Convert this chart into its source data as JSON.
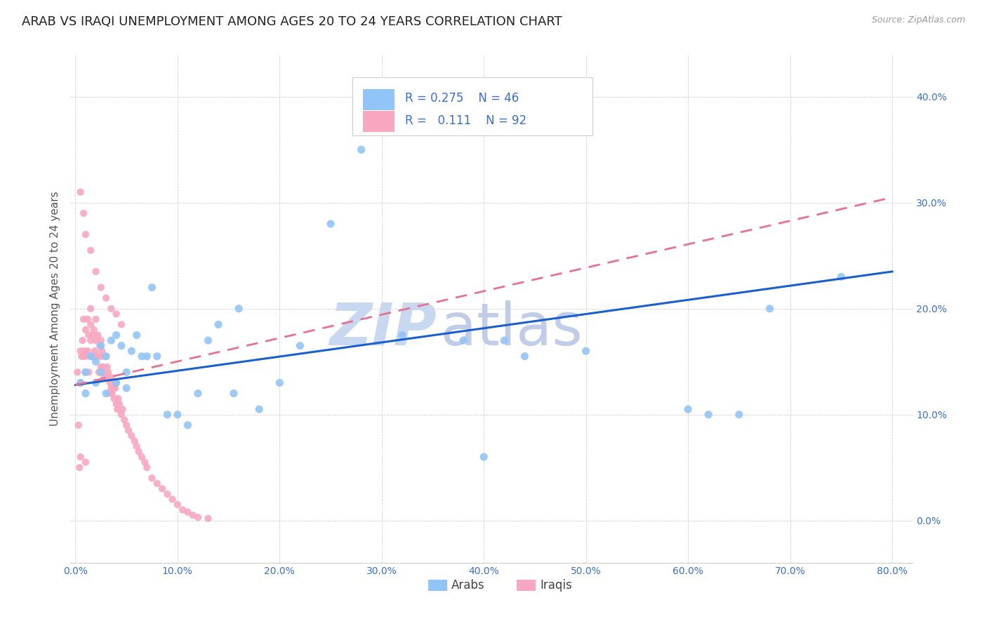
{
  "title": "ARAB VS IRAQI UNEMPLOYMENT AMONG AGES 20 TO 24 YEARS CORRELATION CHART",
  "source": "Source: ZipAtlas.com",
  "ylabel": "Unemployment Among Ages 20 to 24 years",
  "xlim": [
    -0.005,
    0.82
  ],
  "ylim": [
    -0.04,
    0.44
  ],
  "xticks": [
    0.0,
    0.1,
    0.2,
    0.3,
    0.4,
    0.5,
    0.6,
    0.7,
    0.8
  ],
  "xticklabels": [
    "0.0%",
    "10.0%",
    "20.0%",
    "30.0%",
    "40.0%",
    "50.0%",
    "60.0%",
    "70.0%",
    "80.0%"
  ],
  "yticks": [
    0.0,
    0.1,
    0.2,
    0.3,
    0.4
  ],
  "yticklabels": [
    "0.0%",
    "10.0%",
    "20.0%",
    "30.0%",
    "40.0%"
  ],
  "arab_color": "#92c5f7",
  "iraqi_color": "#f7a8c0",
  "arab_line_color": "#1a5fcc",
  "iraqi_line_color": "#e87090",
  "arab_R": 0.275,
  "arab_N": 46,
  "iraqi_R": 0.111,
  "iraqi_N": 92,
  "watermark": "ZIPatlas",
  "watermark_color_zip": "#c8d8f0",
  "watermark_color_atlas": "#c0cce8",
  "background_color": "#ffffff",
  "title_fontsize": 13,
  "axis_label_fontsize": 11,
  "tick_fontsize": 10,
  "legend_fontsize": 12,
  "arab_x": [
    0.005,
    0.01,
    0.01,
    0.015,
    0.02,
    0.02,
    0.025,
    0.025,
    0.03,
    0.03,
    0.035,
    0.04,
    0.04,
    0.045,
    0.05,
    0.05,
    0.055,
    0.06,
    0.065,
    0.07,
    0.075,
    0.08,
    0.09,
    0.1,
    0.11,
    0.12,
    0.13,
    0.14,
    0.155,
    0.16,
    0.18,
    0.2,
    0.22,
    0.25,
    0.28,
    0.32,
    0.38,
    0.4,
    0.42,
    0.44,
    0.5,
    0.6,
    0.62,
    0.65,
    0.68,
    0.75
  ],
  "arab_y": [
    0.13,
    0.14,
    0.12,
    0.155,
    0.13,
    0.15,
    0.14,
    0.165,
    0.12,
    0.155,
    0.17,
    0.13,
    0.175,
    0.165,
    0.14,
    0.125,
    0.16,
    0.175,
    0.155,
    0.155,
    0.22,
    0.155,
    0.1,
    0.1,
    0.09,
    0.12,
    0.17,
    0.185,
    0.12,
    0.2,
    0.105,
    0.13,
    0.165,
    0.28,
    0.35,
    0.175,
    0.17,
    0.06,
    0.17,
    0.155,
    0.16,
    0.105,
    0.1,
    0.1,
    0.2,
    0.23
  ],
  "iraqi_x": [
    0.002,
    0.003,
    0.004,
    0.005,
    0.005,
    0.006,
    0.007,
    0.008,
    0.008,
    0.009,
    0.01,
    0.01,
    0.01,
    0.012,
    0.012,
    0.013,
    0.013,
    0.015,
    0.015,
    0.015,
    0.016,
    0.017,
    0.018,
    0.018,
    0.019,
    0.02,
    0.02,
    0.02,
    0.022,
    0.022,
    0.023,
    0.024,
    0.025,
    0.025,
    0.025,
    0.026,
    0.027,
    0.028,
    0.028,
    0.029,
    0.03,
    0.03,
    0.031,
    0.032,
    0.033,
    0.034,
    0.035,
    0.035,
    0.036,
    0.037,
    0.038,
    0.039,
    0.04,
    0.04,
    0.041,
    0.042,
    0.043,
    0.045,
    0.046,
    0.048,
    0.05,
    0.052,
    0.055,
    0.058,
    0.06,
    0.062,
    0.065,
    0.068,
    0.07,
    0.075,
    0.08,
    0.085,
    0.09,
    0.095,
    0.1,
    0.105,
    0.11,
    0.115,
    0.12,
    0.13,
    0.005,
    0.008,
    0.01,
    0.015,
    0.02,
    0.025,
    0.03,
    0.035,
    0.04,
    0.045,
    0.005,
    0.01
  ],
  "iraqi_y": [
    0.14,
    0.09,
    0.05,
    0.16,
    0.13,
    0.155,
    0.17,
    0.155,
    0.19,
    0.16,
    0.18,
    0.155,
    0.14,
    0.19,
    0.16,
    0.175,
    0.14,
    0.185,
    0.17,
    0.2,
    0.155,
    0.175,
    0.155,
    0.18,
    0.16,
    0.17,
    0.155,
    0.19,
    0.155,
    0.175,
    0.14,
    0.165,
    0.155,
    0.17,
    0.145,
    0.16,
    0.145,
    0.155,
    0.135,
    0.14,
    0.155,
    0.135,
    0.145,
    0.14,
    0.12,
    0.13,
    0.125,
    0.135,
    0.12,
    0.125,
    0.115,
    0.125,
    0.11,
    0.13,
    0.105,
    0.115,
    0.11,
    0.1,
    0.105,
    0.095,
    0.09,
    0.085,
    0.08,
    0.075,
    0.07,
    0.065,
    0.06,
    0.055,
    0.05,
    0.04,
    0.035,
    0.03,
    0.025,
    0.02,
    0.015,
    0.01,
    0.008,
    0.005,
    0.003,
    0.002,
    0.31,
    0.29,
    0.27,
    0.255,
    0.235,
    0.22,
    0.21,
    0.2,
    0.195,
    0.185,
    0.06,
    0.055
  ],
  "arab_line_x": [
    0.0,
    0.8
  ],
  "arab_line_y": [
    0.128,
    0.235
  ],
  "iraqi_line_x": [
    0.0,
    0.8
  ],
  "iraqi_line_y": [
    0.128,
    0.305
  ]
}
